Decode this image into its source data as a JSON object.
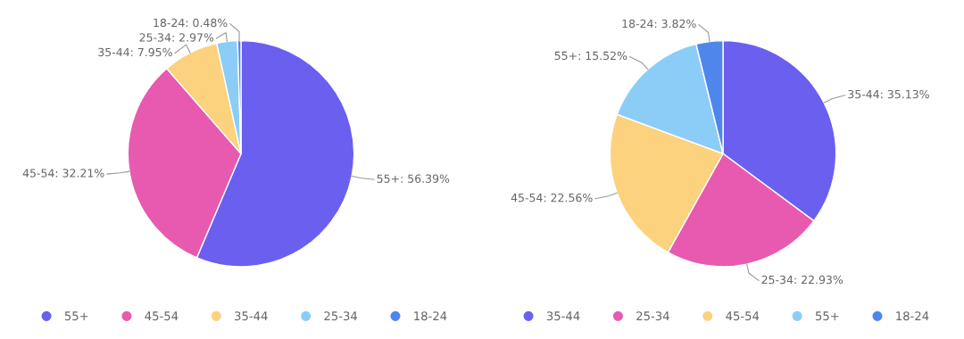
{
  "chart_data": [
    {
      "type": "pie",
      "categories": [
        "55+",
        "45-54",
        "35-44",
        "25-34",
        "18-24"
      ],
      "values": [
        56.39,
        32.21,
        7.95,
        2.97,
        0.48
      ],
      "colors": [
        "#6b5ff0",
        "#e75aaf",
        "#fcd27e",
        "#8ccdf8",
        "#4f86ec"
      ],
      "value_labels": [
        "55+: 56.39%",
        "45-54: 32.21%",
        "35-44: 7.95%",
        "25-34: 2.97%",
        "18-24: 0.48%"
      ],
      "legend": "bottom"
    },
    {
      "type": "pie",
      "categories": [
        "35-44",
        "25-34",
        "45-54",
        "55+",
        "18-24"
      ],
      "values": [
        35.13,
        22.93,
        22.56,
        15.52,
        3.82
      ],
      "colors": [
        "#6b5ff0",
        "#e75aaf",
        "#fcd27e",
        "#8ccdf8",
        "#4f86ec"
      ],
      "value_labels": [
        "35-44: 35.13%",
        "25-34: 22.93%",
        "45-54: 22.56%",
        "55+: 15.52%",
        "18-24: 3.82%"
      ],
      "legend": "bottom"
    }
  ]
}
